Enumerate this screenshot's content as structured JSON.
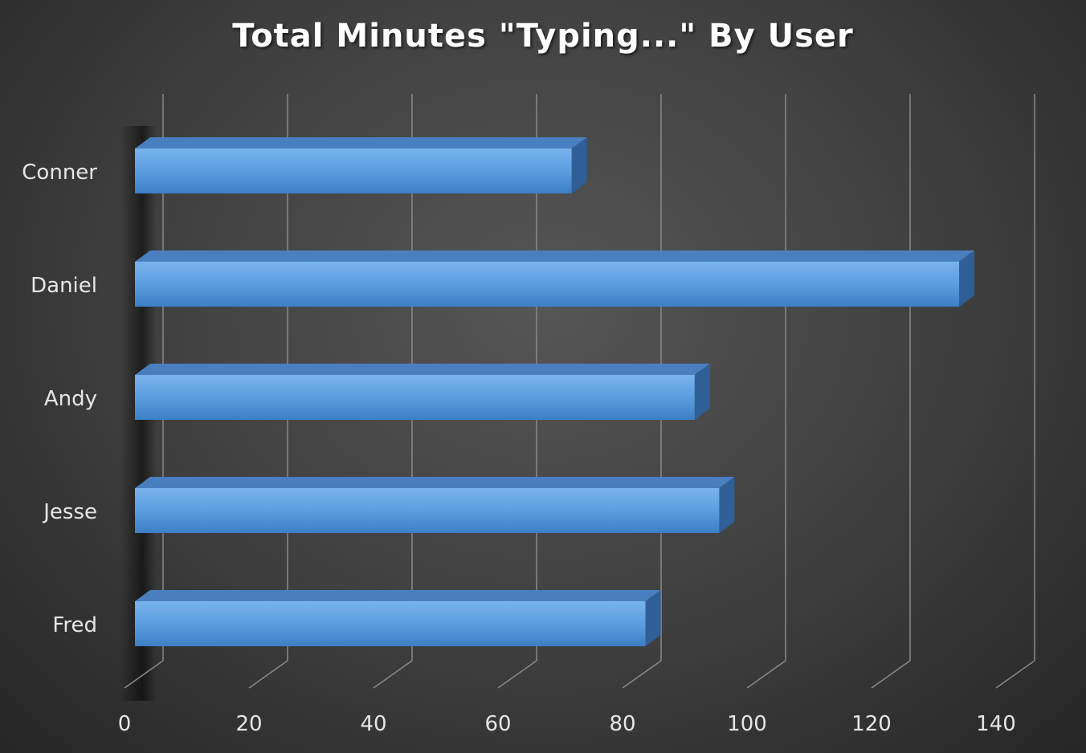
{
  "chart_data": {
    "type": "bar",
    "orientation": "horizontal",
    "title": "Total Minutes \"Typing...\" By User",
    "categories": [
      "Conner",
      "Daniel",
      "Andy",
      "Jesse",
      "Fred"
    ],
    "values": [
      71,
      134,
      91,
      95,
      83
    ],
    "xlim": [
      0,
      140
    ],
    "xticks": [
      "0",
      "20",
      "40",
      "60",
      "80",
      "100",
      "120",
      "140"
    ],
    "grid": true,
    "legend": "none",
    "colors": {
      "bar": "#5b9bd5",
      "grid": "#8a8a8a"
    }
  }
}
